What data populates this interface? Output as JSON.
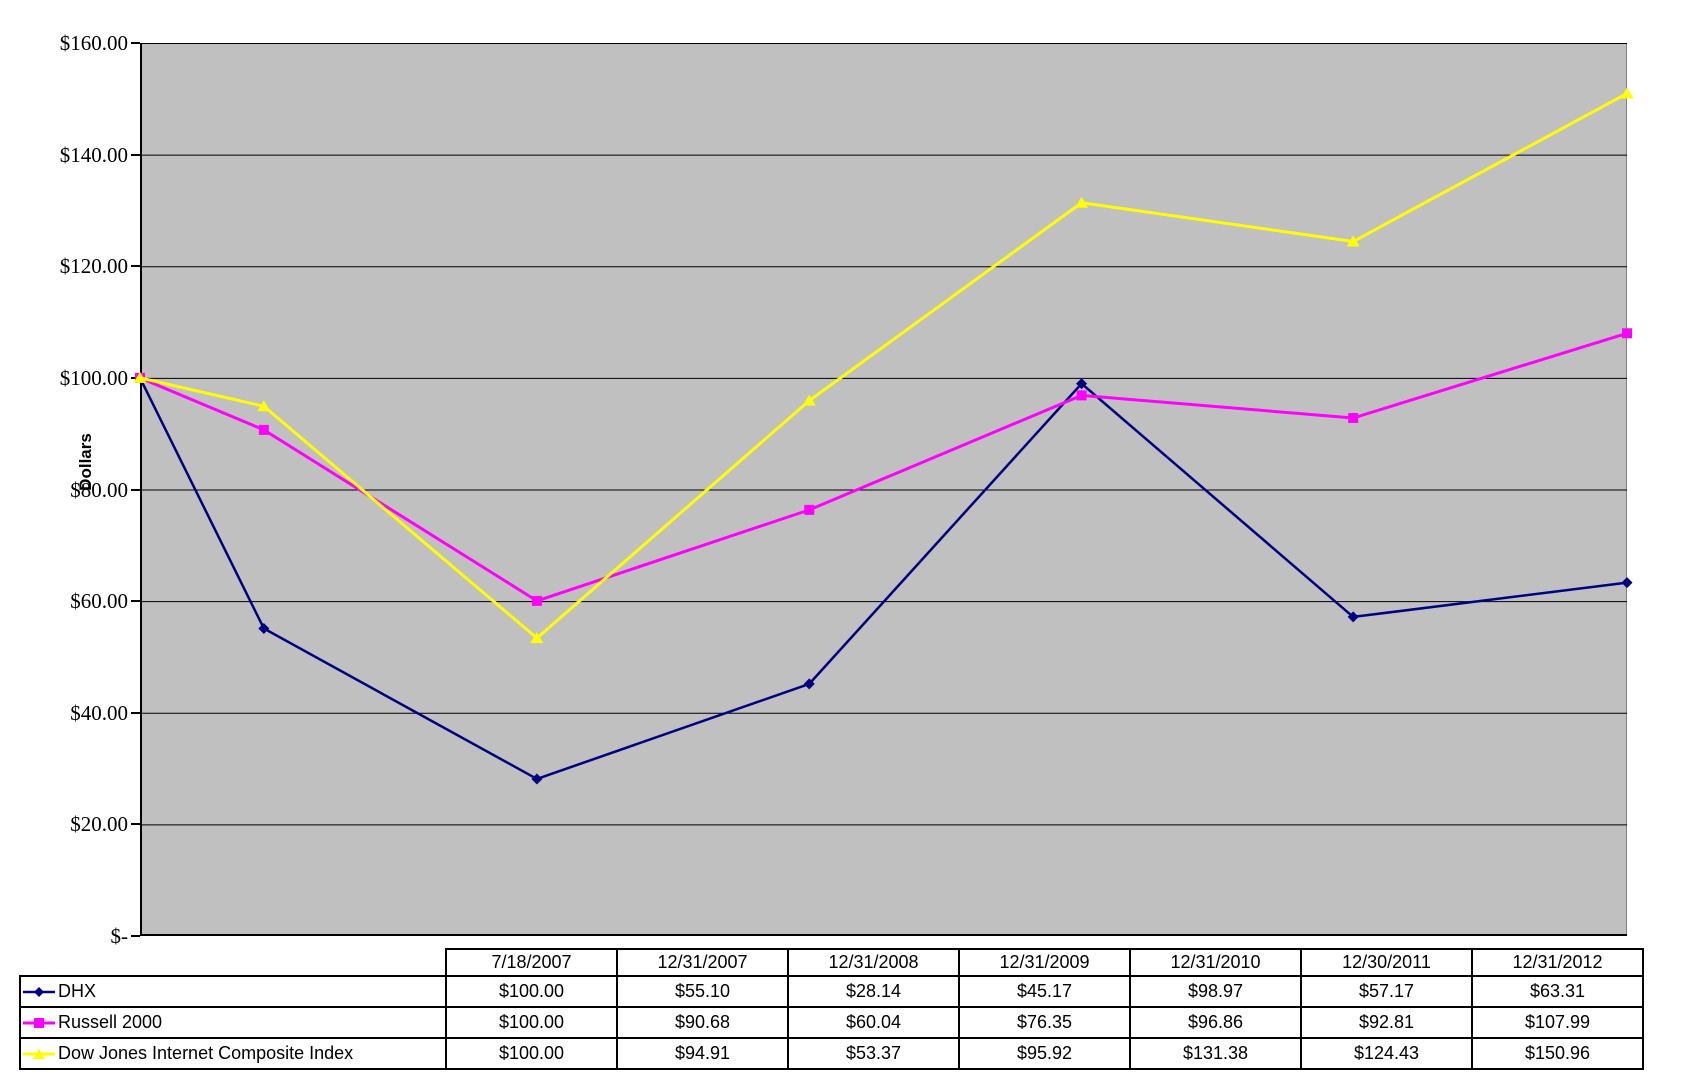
{
  "chart_data": {
    "type": "line",
    "title": "",
    "ylabel": "Dollars",
    "ylim": [
      0,
      160
    ],
    "ytick_step": 20,
    "grid": true,
    "plot_background": "#c0c0c0",
    "plot_border_color": "#808080",
    "gridline_color": "#000000",
    "axis_color": "#000000",
    "x_axis_scale": "time",
    "legend_position": "table-left-column",
    "x": [
      "7/18/2007",
      "12/31/2007",
      "12/31/2008",
      "12/31/2009",
      "12/31/2010",
      "12/30/2011",
      "12/31/2012"
    ],
    "yticks": [
      {
        "label": "$160.00",
        "value": 160
      },
      {
        "label": "$140.00",
        "value": 140
      },
      {
        "label": "$120.00",
        "value": 120
      },
      {
        "label": "$100.00",
        "value": 100
      },
      {
        "label": "$80.00",
        "value": 80
      },
      {
        "label": "$60.00",
        "value": 60
      },
      {
        "label": "$40.00",
        "value": 40
      },
      {
        "label": "$20.00",
        "value": 20
      },
      {
        "label": "$-",
        "value": 0,
        "pad_right": 30
      }
    ],
    "series": [
      {
        "name": "DHX",
        "color": "#000080",
        "marker": "diamond",
        "line_width": 2.5,
        "values": [
          100.0,
          55.1,
          28.14,
          45.17,
          98.97,
          57.17,
          63.31
        ]
      },
      {
        "name": "Russell 2000",
        "color": "#ff00ff",
        "marker": "square",
        "line_width": 3,
        "values": [
          100.0,
          90.68,
          60.04,
          76.35,
          96.86,
          92.81,
          107.99
        ]
      },
      {
        "name": "Dow Jones Internet Composite Index",
        "color": "#ffff00",
        "marker": "triangle",
        "line_width": 3,
        "values": [
          100.0,
          94.91,
          53.37,
          95.92,
          131.38,
          124.43,
          150.96
        ]
      }
    ]
  },
  "table": {
    "date_headers": [
      "7/18/2007",
      "12/31/2007",
      "12/31/2008",
      "12/31/2009",
      "12/31/2010",
      "12/30/2011",
      "12/31/2012"
    ],
    "rows": [
      {
        "label": "DHX",
        "values": [
          "$100.00",
          "$55.10",
          "$28.14",
          "$45.17",
          "$98.97",
          "$57.17",
          "$63.31"
        ]
      },
      {
        "label": "Russell 2000",
        "values": [
          "$100.00",
          "$90.68",
          "$60.04",
          "$76.35",
          "$96.86",
          "$92.81",
          "$107.99"
        ]
      },
      {
        "label": "Dow Jones Internet Composite Index",
        "values": [
          "$100.00",
          "$94.91",
          "$53.37",
          "$95.92",
          "$131.38",
          "$124.43",
          "$150.96"
        ]
      }
    ]
  }
}
